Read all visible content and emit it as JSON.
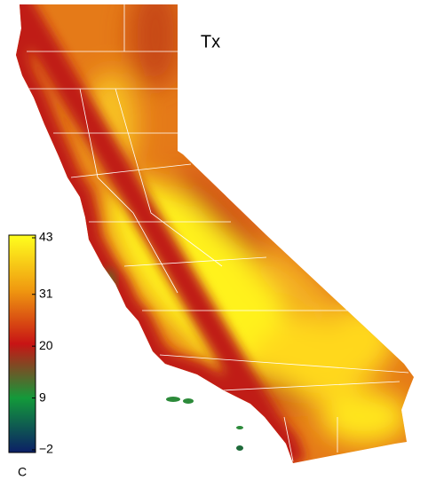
{
  "map": {
    "title": "Tx",
    "colorbar": {
      "lim": [
        -2,
        43
      ],
      "ticks": [
        {
          "value": -2,
          "label": "−2"
        },
        9,
        20,
        31,
        43
      ],
      "unit": "C",
      "colors": [
        "#0b1f66",
        "#139a3a",
        "#c81414",
        "#f09a10",
        "#ffff1e"
      ]
    }
  }
}
